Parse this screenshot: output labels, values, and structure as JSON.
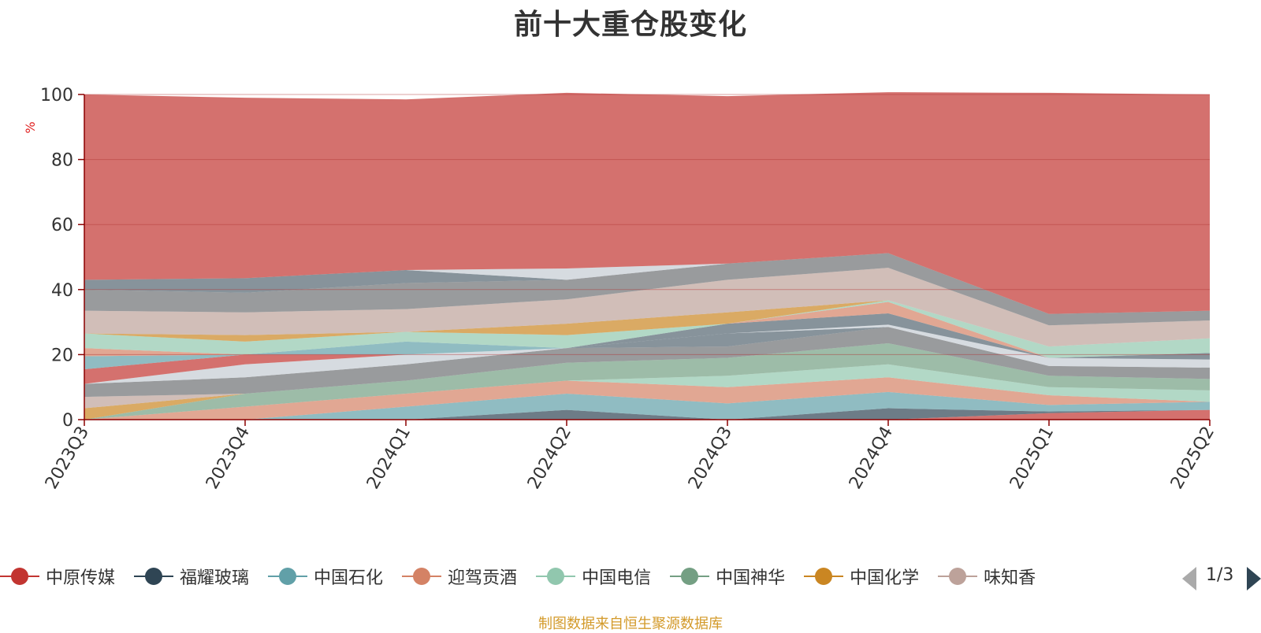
{
  "chart_data": {
    "type": "area",
    "stacked": true,
    "title": "前十大重仓股变化",
    "ylabel": "%",
    "ylim": [
      0,
      100
    ],
    "yticks": [
      0,
      20,
      40,
      60,
      80,
      100
    ],
    "grid": true,
    "x": [
      "2023Q3",
      "2023Q4",
      "2024Q1",
      "2024Q2",
      "2024Q3",
      "2024Q4",
      "2025Q1",
      "2025Q2"
    ],
    "legend_position": "bottom",
    "legend_page": "1/3",
    "series": [
      {
        "name": "中原传媒",
        "color": "#c23531",
        "values": [
          0,
          0,
          0,
          0,
          0,
          0,
          2.0,
          3.0
        ]
      },
      {
        "name": "福耀玻璃",
        "color": "#2f4554",
        "values": [
          0,
          0,
          0,
          3.0,
          0,
          3.5,
          0.5,
          0
        ]
      },
      {
        "name": "中国石化",
        "color": "#61a0a8",
        "values": [
          0,
          0,
          4.0,
          5.0,
          5.0,
          5.0,
          2.0,
          2.5
        ]
      },
      {
        "name": "迎驾贡酒",
        "color": "#d48265",
        "values": [
          0,
          4.0,
          4.0,
          4.0,
          5.0,
          4.5,
          3.0,
          0
        ]
      },
      {
        "name": "中国电信",
        "color": "#91c7ae",
        "values": [
          0,
          0,
          0,
          0,
          3.5,
          4.0,
          2.5,
          3.5
        ]
      },
      {
        "name": "中国神华",
        "color": "#749f83",
        "values": [
          0,
          4.0,
          4.0,
          5.5,
          5.5,
          6.5,
          3.5,
          3.5
        ]
      },
      {
        "name": "中国化学",
        "color": "#ca8622",
        "values": [
          3.5,
          0,
          0,
          0,
          0,
          0,
          0,
          0
        ]
      },
      {
        "name": "味知香",
        "color": "#bda29a",
        "values": [
          3.5,
          0,
          0,
          0,
          0,
          0,
          0,
          0
        ]
      },
      {
        "color": "#6e7074",
        "values": [
          4.0,
          5.0,
          5.0,
          4.5,
          3.5,
          5.0,
          3.0,
          3.5
        ]
      },
      {
        "color": "#546570",
        "values": [
          0,
          0,
          0,
          0,
          4.0,
          0,
          0,
          0
        ]
      },
      {
        "color": "#c4ccd3",
        "values": [
          0,
          4.0,
          3.0,
          0,
          0,
          0.7,
          2.5,
          2.5
        ]
      },
      {
        "color": "#c23531",
        "values": [
          4.5,
          3.0,
          0,
          0,
          0,
          0,
          0,
          0
        ]
      },
      {
        "color": "#61a0a8",
        "values": [
          4.0,
          0,
          4.0,
          0,
          0,
          0,
          0,
          0
        ]
      },
      {
        "color": "#546570",
        "values": [
          0,
          0,
          0,
          0,
          3.0,
          3.5,
          0,
          2.0
        ]
      },
      {
        "color": "#d48265",
        "values": [
          2.5,
          0,
          0,
          0,
          0,
          3.5,
          0,
          0
        ]
      },
      {
        "color": "#91c7ae",
        "values": [
          4.5,
          4.0,
          3.0,
          4.0,
          0,
          0.5,
          3.5,
          4.5
        ]
      },
      {
        "color": "#ca8622",
        "values": [
          0,
          2.0,
          0,
          3.5,
          3.5,
          0,
          0,
          0
        ]
      },
      {
        "color": "#bda29a",
        "values": [
          7.0,
          7.0,
          7.0,
          7.5,
          10.0,
          10.0,
          6.5,
          5.5
        ]
      },
      {
        "color": "#6e7074",
        "values": [
          6.5,
          6.0,
          8.0,
          6.0,
          5.0,
          4.5,
          3.5,
          3.0
        ]
      },
      {
        "color": "#546570",
        "values": [
          3.0,
          4.5,
          4.0,
          0,
          0,
          0,
          0,
          0
        ]
      },
      {
        "color": "#c4ccd3",
        "values": [
          0,
          0,
          0,
          3.5,
          0,
          0,
          0,
          0
        ]
      },
      {
        "color": "#c23531",
        "values": [
          57.0,
          55.5,
          52.5,
          54.0,
          51.5,
          49.5,
          68.0,
          66.5
        ]
      }
    ]
  },
  "source_note": "制图数据来自恒生聚源数据库"
}
